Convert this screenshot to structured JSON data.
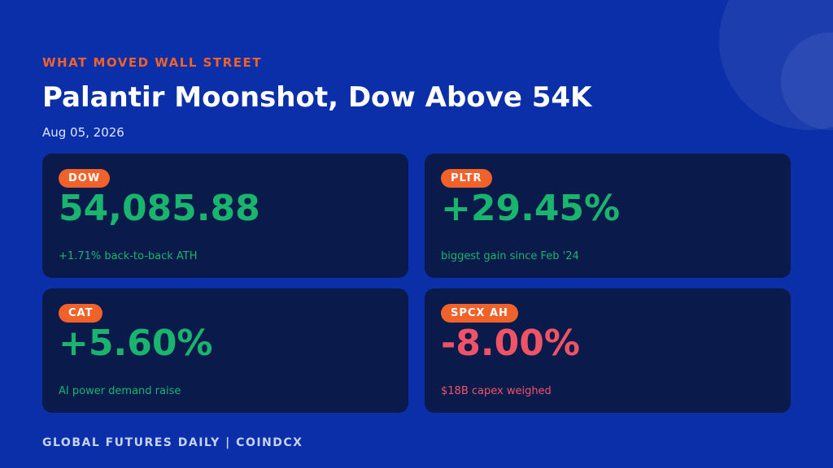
{
  "header": {
    "kicker": "WHAT MOVED WALL STREET",
    "title": "Palantir Moonshot, Dow Above 54K",
    "date": "Aug 05, 2026"
  },
  "cards": [
    {
      "tag": "DOW",
      "value": "54,085.88",
      "note": "+1.71% back-to-back ATH",
      "tone": "up"
    },
    {
      "tag": "PLTR",
      "value": "+29.45%",
      "note": "biggest gain since Feb '24",
      "tone": "up"
    },
    {
      "tag": "CAT",
      "value": "+5.60%",
      "note": "AI power demand raise",
      "tone": "up"
    },
    {
      "tag": "SPCX AH",
      "value": "-8.00%",
      "note": "$18B capex weighed",
      "tone": "down"
    }
  ],
  "footer": "GLOBAL FUTURES DAILY | COINDCX"
}
